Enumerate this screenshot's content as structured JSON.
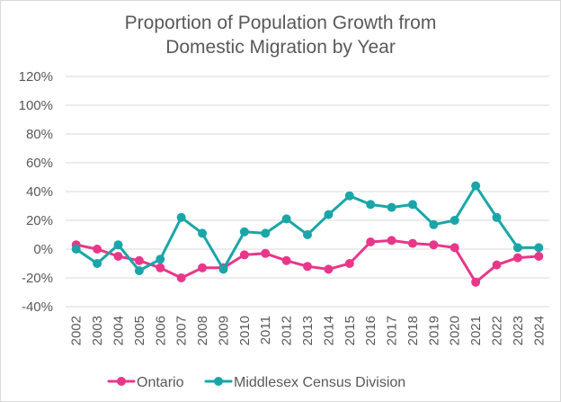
{
  "chart_data": {
    "type": "line",
    "title": [
      "Proportion of Population Growth from",
      "Domestic Migration by Year"
    ],
    "xlabel": "",
    "ylabel": "",
    "categories": [
      "2002",
      "2003",
      "2004",
      "2005",
      "2006",
      "2007",
      "2008",
      "2009",
      "2010",
      "2011",
      "2012",
      "2013",
      "2014",
      "2015",
      "2016",
      "2017",
      "2018",
      "2019",
      "2020",
      "2021",
      "2022",
      "2023",
      "2024"
    ],
    "ylim": [
      -40,
      120
    ],
    "yticks": [
      -40,
      -20,
      0,
      20,
      40,
      60,
      80,
      100,
      120
    ],
    "ytick_labels": [
      "-40%",
      "-20%",
      "0%",
      "20%",
      "40%",
      "60%",
      "80%",
      "100%",
      "120%"
    ],
    "grid": true,
    "legend_position": "bottom",
    "series": [
      {
        "name": "Ontario",
        "color": "#E8378A",
        "values": [
          3,
          0,
          -5,
          -8,
          -13,
          -20,
          -13,
          -13,
          -4,
          -3,
          -8,
          -12,
          -14,
          -10,
          5,
          6,
          4,
          3,
          1,
          -23,
          -11,
          -6,
          -5
        ]
      },
      {
        "name": "Middlesex Census Division",
        "color": "#1AA6A8",
        "values": [
          0,
          -10,
          3,
          -15,
          -7,
          22,
          11,
          -14,
          12,
          11,
          21,
          10,
          24,
          37,
          31,
          29,
          31,
          17,
          20,
          44,
          22,
          1,
          1
        ]
      }
    ]
  }
}
